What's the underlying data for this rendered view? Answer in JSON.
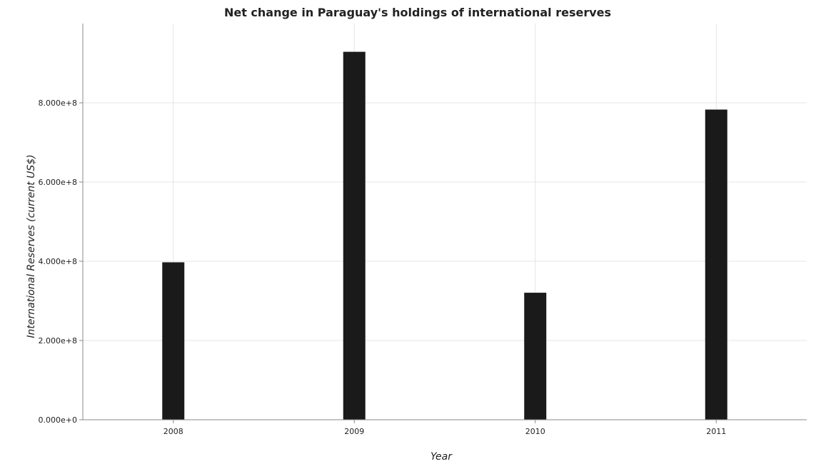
{
  "title": "Net change in Paraguay's holdings of international reserves",
  "colors": {
    "bar_fill": "#1a1a1a",
    "bar_stroke": "#1a1a1a",
    "grid": "#e6e6e6",
    "axis": "#888888"
  },
  "chart_data": {
    "type": "bar",
    "title": "Net change in Paraguay's holdings of international reserves",
    "xlabel": "Year",
    "ylabel": "International Reserves (current US$)",
    "categories": [
      "2008",
      "2009",
      "2010",
      "2011"
    ],
    "values": [
      396500000,
      927800000,
      319700000,
      782000000
    ],
    "ylim": [
      0,
      1000000000
    ],
    "yticks": [
      0,
      200000000,
      400000000,
      600000000,
      800000000
    ],
    "ytick_labels": [
      "0.000e+0",
      "2.000e+8",
      "4.000e+8",
      "6.000e+8",
      "8.000e+8"
    ],
    "grid": true,
    "legend": "none"
  }
}
